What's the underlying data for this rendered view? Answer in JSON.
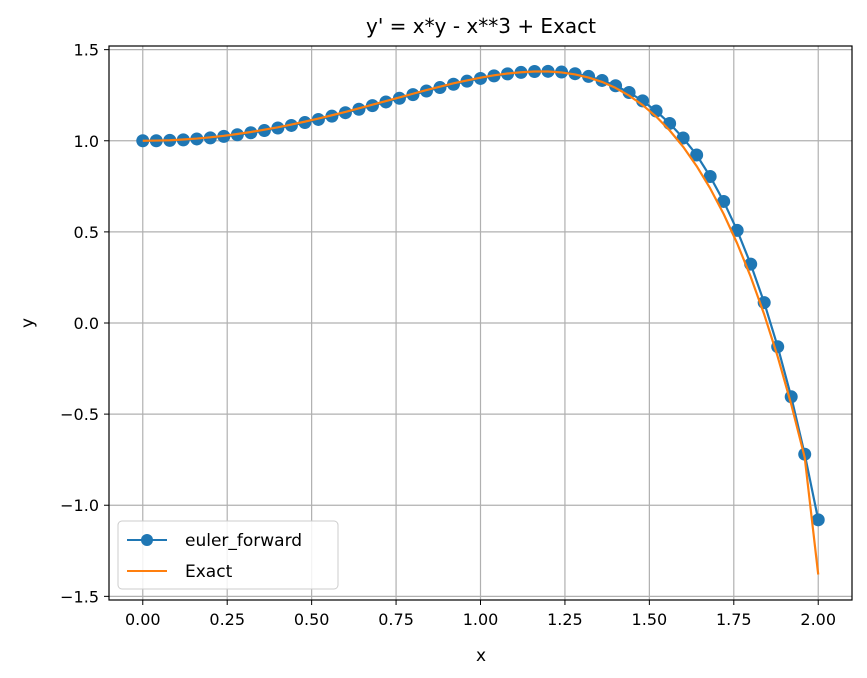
{
  "chart_data": {
    "type": "line",
    "title": "y' = x*y - x**3 + Exact",
    "xlabel": "x",
    "ylabel": "y",
    "xlim": [
      -0.1,
      2.1
    ],
    "ylim": [
      -1.52,
      1.52
    ],
    "xticks": [
      0.0,
      0.25,
      0.5,
      0.75,
      1.0,
      1.25,
      1.5,
      1.75,
      2.0
    ],
    "xtick_labels": [
      "0.00",
      "0.25",
      "0.50",
      "0.75",
      "1.00",
      "1.25",
      "1.50",
      "1.75",
      "2.00"
    ],
    "yticks": [
      -1.5,
      -1.0,
      -0.5,
      0.0,
      0.5,
      1.0,
      1.5
    ],
    "ytick_labels": [
      "−1.5",
      "−1.0",
      "−0.5",
      "0.0",
      "0.5",
      "1.0",
      "1.5"
    ],
    "grid": true,
    "legend_position": "lower-left",
    "series": [
      {
        "name": "euler_forward",
        "color": "#1f77b4",
        "marker": "circle",
        "x": [
          0.0,
          0.04,
          0.08,
          0.12,
          0.16,
          0.2,
          0.24,
          0.28,
          0.32,
          0.36,
          0.4,
          0.44,
          0.48,
          0.52,
          0.56,
          0.6,
          0.64,
          0.68,
          0.72,
          0.76,
          0.8,
          0.84,
          0.88,
          0.92,
          0.96,
          1.0,
          1.04,
          1.08,
          1.12,
          1.16,
          1.2,
          1.24,
          1.28,
          1.32,
          1.36,
          1.4,
          1.44,
          1.48,
          1.52,
          1.56,
          1.6,
          1.64,
          1.68,
          1.72,
          1.76,
          1.8,
          1.84,
          1.88,
          1.92,
          1.96,
          2.0
        ],
        "y": [
          1.0,
          1.0,
          1.002,
          1.005,
          1.01,
          1.016,
          1.024,
          1.033,
          1.044,
          1.056,
          1.07,
          1.084,
          1.1,
          1.117,
          1.135,
          1.154,
          1.173,
          1.193,
          1.213,
          1.233,
          1.253,
          1.273,
          1.292,
          1.31,
          1.327,
          1.342,
          1.356,
          1.367,
          1.375,
          1.38,
          1.381,
          1.377,
          1.368,
          1.353,
          1.331,
          1.302,
          1.265,
          1.219,
          1.163,
          1.095,
          1.015,
          0.922,
          0.804,
          0.667,
          0.508,
          0.323,
          0.112,
          -0.13,
          -0.405,
          -0.72,
          -1.08
        ]
      },
      {
        "name": "Exact",
        "color": "#ff7f0e",
        "x": [
          0.0,
          0.04,
          0.08,
          0.12,
          0.16,
          0.2,
          0.24,
          0.28,
          0.32,
          0.36,
          0.4,
          0.44,
          0.48,
          0.52,
          0.56,
          0.6,
          0.64,
          0.68,
          0.72,
          0.76,
          0.8,
          0.84,
          0.88,
          0.92,
          0.96,
          1.0,
          1.04,
          1.08,
          1.12,
          1.16,
          1.2,
          1.24,
          1.28,
          1.32,
          1.36,
          1.4,
          1.44,
          1.48,
          1.52,
          1.56,
          1.6,
          1.64,
          1.68,
          1.72,
          1.76,
          1.8,
          1.84,
          1.88,
          1.92,
          1.96,
          2.0
        ],
        "y": [
          1.0,
          1.001,
          1.003,
          1.007,
          1.012,
          1.019,
          1.027,
          1.037,
          1.048,
          1.061,
          1.074,
          1.089,
          1.105,
          1.122,
          1.14,
          1.158,
          1.178,
          1.198,
          1.218,
          1.238,
          1.258,
          1.278,
          1.297,
          1.315,
          1.331,
          1.346,
          1.359,
          1.369,
          1.376,
          1.38,
          1.38,
          1.375,
          1.364,
          1.347,
          1.323,
          1.29,
          1.248,
          1.196,
          1.133,
          1.057,
          0.967,
          0.861,
          0.739,
          0.598,
          0.437,
          0.254,
          0.047,
          -0.185,
          -0.446,
          -0.738,
          -1.38
        ]
      }
    ]
  }
}
